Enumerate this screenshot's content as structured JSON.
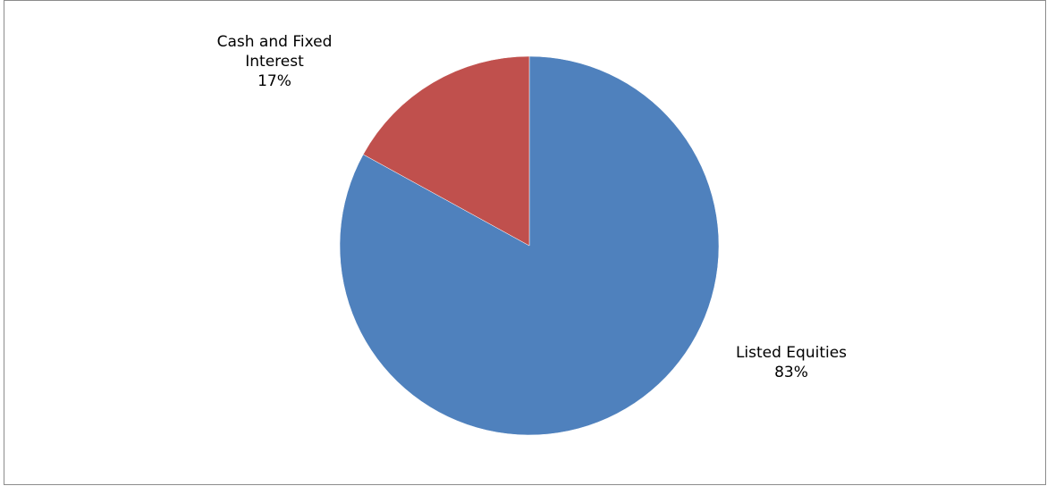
{
  "chart_data": {
    "type": "pie",
    "slices": [
      {
        "label": "Listed Equities",
        "value": 83,
        "pct_label": "83%",
        "color": "#4f81bd"
      },
      {
        "label": "Cash and Fixed Interest",
        "value": 17,
        "pct_label": "17%",
        "color": "#c0504d"
      }
    ],
    "start_angle_deg": 0,
    "direction": "clockwise",
    "title": "",
    "legend": "none"
  }
}
